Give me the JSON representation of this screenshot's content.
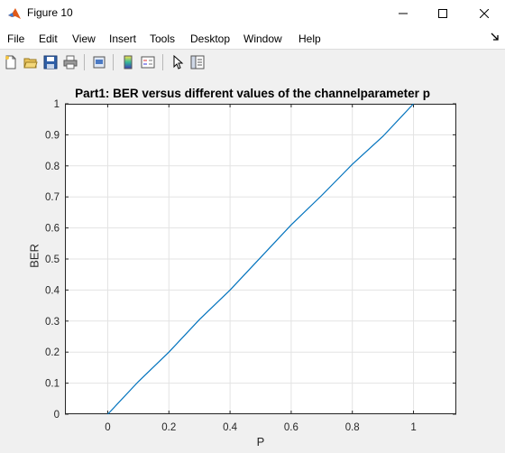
{
  "window": {
    "title": "Figure 10"
  },
  "menu": {
    "items": [
      "File",
      "Edit",
      "View",
      "Insert",
      "Tools",
      "Desktop",
      "Window",
      "Help"
    ]
  },
  "toolbar": {
    "icons": [
      "new-figure-icon",
      "open-file-icon",
      "save-icon",
      "print-icon",
      "print-preview-icon",
      "insert-colorbar-icon",
      "insert-legend-icon",
      "edit-plot-arrow-icon",
      "property-inspector-icon"
    ]
  },
  "chart_data": {
    "type": "line",
    "title": "Part1: BER versus different values of the channelparameter p",
    "xlabel": "P",
    "ylabel": "BER",
    "xlim": [
      -0.14,
      1.14
    ],
    "ylim": [
      0,
      1
    ],
    "xticks": [
      "0",
      "0.2",
      "0.4",
      "0.6",
      "0.8",
      "1"
    ],
    "yticks": [
      "0",
      "0.1",
      "0.2",
      "0.3",
      "0.4",
      "0.5",
      "0.6",
      "0.7",
      "0.8",
      "0.9",
      "1"
    ],
    "grid": true,
    "series": [
      {
        "x": [
          0,
          0.1,
          0.2,
          0.3,
          0.4,
          0.5,
          0.6,
          0.7,
          0.8,
          0.9,
          1
        ],
        "y": [
          0,
          0.105,
          0.2,
          0.305,
          0.4,
          0.505,
          0.61,
          0.705,
          0.805,
          0.895,
          1
        ],
        "color": "#0072bd"
      }
    ]
  }
}
